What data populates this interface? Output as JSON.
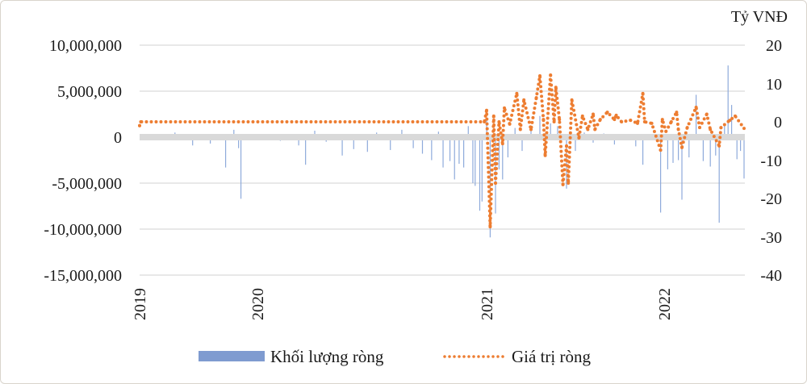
{
  "chart_data": {
    "type": "bar+line",
    "title": "",
    "y_left": {
      "ticks": [
        "10,000,000",
        "5,000,000",
        "0",
        "-5,000,000",
        "-10,000,000",
        "-15,000,000"
      ],
      "range": [
        -15000000,
        10000000
      ]
    },
    "y_right": {
      "label": "Tỷ VNĐ",
      "ticks": [
        "20",
        "10",
        "0",
        "-10",
        "-20",
        "-30",
        "-40"
      ],
      "range": [
        -40,
        20
      ]
    },
    "x_ticks": [
      "2019",
      "2020",
      "2021",
      "2022"
    ],
    "grid": true,
    "legend_position": "bottom",
    "colors": {
      "bars": "#8eaadb",
      "legend_bar": "#7f9bd0",
      "line": "#ed7d31",
      "zero_band": "#d9d9d9",
      "grid": "#d9d9d9"
    },
    "series": [
      {
        "name": "Khối lượng ròng",
        "type": "bar",
        "axis": "left",
        "unit_note": "values in shares",
        "points": [
          [
            2019.05,
            -300000
          ],
          [
            2019.3,
            500000
          ],
          [
            2019.45,
            -900000
          ],
          [
            2019.6,
            -700000
          ],
          [
            2019.73,
            -3300000
          ],
          [
            2019.8,
            800000
          ],
          [
            2019.84,
            -1200000
          ],
          [
            2019.86,
            -6700000
          ],
          [
            2020.05,
            300000
          ],
          [
            2020.1,
            -400000
          ],
          [
            2020.18,
            -900000
          ],
          [
            2020.21,
            -3000000
          ],
          [
            2020.25,
            700000
          ],
          [
            2020.3,
            -500000
          ],
          [
            2020.37,
            -2000000
          ],
          [
            2020.42,
            -1300000
          ],
          [
            2020.48,
            -1600000
          ],
          [
            2020.52,
            500000
          ],
          [
            2020.58,
            -1400000
          ],
          [
            2020.63,
            800000
          ],
          [
            2020.68,
            -1200000
          ],
          [
            2020.72,
            -1800000
          ],
          [
            2020.76,
            -2500000
          ],
          [
            2020.79,
            600000
          ],
          [
            2020.81,
            -3300000
          ],
          [
            2020.84,
            -2600000
          ],
          [
            2020.86,
            -4600000
          ],
          [
            2020.88,
            -2900000
          ],
          [
            2020.9,
            -3300000
          ],
          [
            2020.92,
            1200000
          ],
          [
            2020.94,
            -5000000
          ],
          [
            2020.95,
            -5300000
          ],
          [
            2020.97,
            -8000000
          ],
          [
            2020.98,
            -7000000
          ],
          [
            2021.0,
            1800000
          ],
          [
            2021.02,
            -10900000
          ],
          [
            2021.05,
            -8300000
          ],
          [
            2021.07,
            -3500000
          ],
          [
            2021.09,
            -4600000
          ],
          [
            2021.12,
            -2200000
          ],
          [
            2021.16,
            1000000
          ],
          [
            2021.2,
            -1500000
          ],
          [
            2021.25,
            800000
          ],
          [
            2021.3,
            2300000
          ],
          [
            2021.33,
            -1000000
          ],
          [
            2021.36,
            1500000
          ],
          [
            2021.4,
            1200000
          ],
          [
            2021.45,
            -5600000
          ],
          [
            2021.5,
            -1500000
          ],
          [
            2021.55,
            500000
          ],
          [
            2021.6,
            -600000
          ],
          [
            2021.66,
            400000
          ],
          [
            2021.72,
            -800000
          ],
          [
            2021.78,
            300000
          ],
          [
            2021.84,
            -1000000
          ],
          [
            2021.88,
            -3000000
          ],
          [
            2021.93,
            300000
          ],
          [
            2021.98,
            -8200000
          ],
          [
            2022.02,
            -3500000
          ],
          [
            2022.05,
            -2800000
          ],
          [
            2022.08,
            -2500000
          ],
          [
            2022.1,
            -6800000
          ],
          [
            2022.14,
            -2200000
          ],
          [
            2022.18,
            4600000
          ],
          [
            2022.22,
            -2600000
          ],
          [
            2022.26,
            -3200000
          ],
          [
            2022.29,
            -2000000
          ],
          [
            2022.31,
            -9300000
          ],
          [
            2022.34,
            1500000
          ],
          [
            2022.36,
            7800000
          ],
          [
            2022.38,
            3500000
          ],
          [
            2022.41,
            -2400000
          ],
          [
            2022.43,
            -1500000
          ],
          [
            2022.45,
            -4500000
          ]
        ]
      },
      {
        "name": "Giá trị ròng",
        "type": "line",
        "axis": "right",
        "style": "dotted",
        "points": [
          [
            2019.0,
            -1
          ],
          [
            2019.01,
            0
          ],
          [
            2020.99,
            0
          ],
          [
            2021.0,
            3
          ],
          [
            2021.02,
            -27.4
          ],
          [
            2021.04,
            1.5
          ],
          [
            2021.05,
            -16
          ],
          [
            2021.07,
            0
          ],
          [
            2021.09,
            -5.7
          ],
          [
            2021.1,
            3.6
          ],
          [
            2021.13,
            -0.6
          ],
          [
            2021.17,
            7.4
          ],
          [
            2021.19,
            -2
          ],
          [
            2021.21,
            5.7
          ],
          [
            2021.25,
            -2
          ],
          [
            2021.28,
            6.3
          ],
          [
            2021.3,
            12
          ],
          [
            2021.32,
            0.6
          ],
          [
            2021.33,
            -8.8
          ],
          [
            2021.36,
            12.2
          ],
          [
            2021.38,
            0
          ],
          [
            2021.39,
            9
          ],
          [
            2021.41,
            0.6
          ],
          [
            2021.43,
            -16.4
          ],
          [
            2021.45,
            -6.3
          ],
          [
            2021.46,
            -16
          ],
          [
            2021.48,
            5.7
          ],
          [
            2021.52,
            -4.2
          ],
          [
            2021.54,
            1.5
          ],
          [
            2021.57,
            -2
          ],
          [
            2021.6,
            2
          ],
          [
            2021.61,
            -2
          ],
          [
            2021.64,
            0.6
          ],
          [
            2021.68,
            2.5
          ],
          [
            2021.72,
            0.6
          ],
          [
            2021.73,
            1.7
          ],
          [
            2021.76,
            0
          ],
          [
            2021.81,
            0.4
          ],
          [
            2021.85,
            -0.4
          ],
          [
            2021.88,
            7.4
          ],
          [
            2021.89,
            0
          ],
          [
            2021.93,
            -0.4
          ],
          [
            2021.98,
            -7.4
          ],
          [
            2021.99,
            0.6
          ],
          [
            2022.01,
            -2.5
          ],
          [
            2022.04,
            0
          ],
          [
            2022.07,
            2.5
          ],
          [
            2022.08,
            -2
          ],
          [
            2022.1,
            -6.7
          ],
          [
            2022.13,
            -1.5
          ],
          [
            2022.18,
            3.8
          ],
          [
            2022.2,
            -1.5
          ],
          [
            2022.24,
            2
          ],
          [
            2022.26,
            -2
          ],
          [
            2022.31,
            -6.3
          ],
          [
            2022.32,
            -1.5
          ],
          [
            2022.37,
            0.4
          ],
          [
            2022.4,
            1.5
          ],
          [
            2022.45,
            -1.7
          ]
        ]
      }
    ]
  },
  "legend": {
    "bar_label": "Khối lượng ròng",
    "line_label": "Giá trị ròng"
  }
}
